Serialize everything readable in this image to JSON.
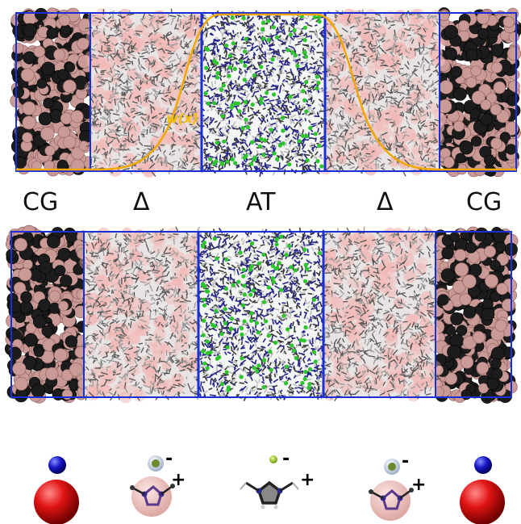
{
  "labels": {
    "left_cg": "CG",
    "left_delta": "Δ",
    "at": "AT",
    "right_delta": "Δ",
    "right_cg": "CG"
  },
  "weight_function_label": "w(x)",
  "molecules": {
    "cg_left": {
      "anion": "anion-blue-sphere",
      "cation": "cation-red-sphere"
    },
    "hybrid_left": {
      "anion_charge": "-",
      "cation_charge": "+"
    },
    "atomistic": {
      "anion_charge": "-",
      "cation_charge": "+"
    },
    "hybrid_right": {
      "anion_charge": "-",
      "cation_charge": "+"
    },
    "cg_right": {
      "anion": "anion-blue-sphere",
      "cation": "cation-red-sphere"
    }
  },
  "colors": {
    "box_outline": "#1a2fd6",
    "weight_curve": "#f0a800",
    "cg_bead": "#c99a96",
    "cg_bead_dark": "#1c1c1c",
    "at_blue": "#23238a",
    "at_green": "#2ec42e"
  }
}
